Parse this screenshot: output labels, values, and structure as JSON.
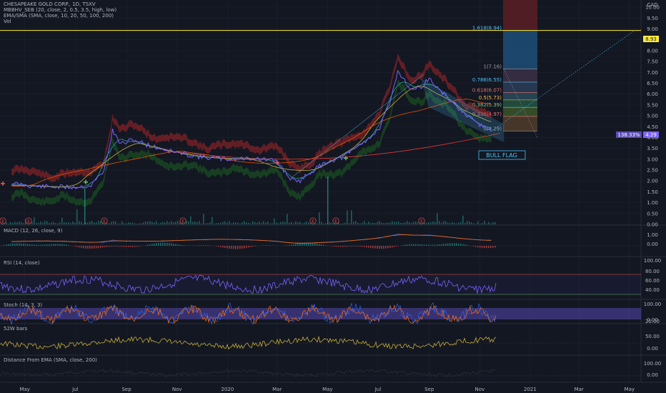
{
  "header": {
    "line1": "CHESAPEAKE GOLD CORP., 1D, TSXV",
    "line2": "MBBHV_SEB (20, close, 2, 0.5, 3.5, high, low)",
    "line3": "EMA/SMA (SMA, close, 10, 20, 50, 100, 200)",
    "line4": "Vol"
  },
  "colors": {
    "background": "#131722",
    "price": "#7b61ff",
    "band_red": "#c62828",
    "band_green": "#1b5e20",
    "ma_yellow": "#c9b03a",
    "ma_orange": "#e65100",
    "ma_red": "#e53935",
    "ma_teal": "#26a69a",
    "fib_label": "#4fc3f7",
    "target_line": "#ffeb3b",
    "flag": "#4fc3f7"
  },
  "price_axis": {
    "currency": "CAD",
    "ticks": [
      "10.00",
      "9.50",
      "9.00",
      "8.50",
      "8.00",
      "7.50",
      "7.00",
      "6.50",
      "6.00",
      "5.50",
      "5.00",
      "4.50",
      "4.00",
      "3.50",
      "3.00",
      "2.50",
      "2.00",
      "1.50",
      "1.00",
      "0.50",
      "0.00"
    ],
    "target_badge": "8.93",
    "last_price_badge": "4.29",
    "change_badge": "138.33%"
  },
  "time_axis": [
    "May",
    "Jul",
    "Sep",
    "Nov",
    "2020",
    "Mar",
    "May",
    "Jul",
    "Sep",
    "Nov",
    "2021",
    "Mar",
    "May"
  ],
  "fib_levels": [
    {
      "label": "1.618(8.94)",
      "value": 8.94
    },
    {
      "label": "1(7.16)",
      "value": 7.16
    },
    {
      "label": "0.786(6.55)",
      "value": 6.55
    },
    {
      "label": "0.618(6.07)",
      "value": 6.07
    },
    {
      "label": "0.5(5.73)",
      "value": 5.73
    },
    {
      "label": "0.382(5.39)",
      "value": 5.39
    },
    {
      "label": "0.236(4.97)",
      "value": 4.97
    },
    {
      "label": "0(4.29)",
      "value": 4.29
    }
  ],
  "annotation": "BULL FLAG",
  "earnings_marker": "E",
  "panes": {
    "macd": {
      "title": "MACD (12, 26, close, 9)",
      "ticks": [
        "1.00",
        "0.00"
      ]
    },
    "rsi": {
      "title": "RSI (14, close)",
      "ticks": [
        "100.00",
        "80.00",
        "60.00",
        "40.00"
      ]
    },
    "stoch": {
      "title": "Stoch (14, 3, 3)",
      "ticks": [
        "100.00",
        "0.00",
        "20.00"
      ]
    },
    "w52": {
      "title": "52W bars",
      "ticks": [
        "50.00",
        "0.00"
      ]
    },
    "dist": {
      "title": "Distance From EMA (SMA, close, 200)",
      "ticks": [
        "100.00",
        "0.00"
      ]
    }
  },
  "chart_data": {
    "type": "line",
    "x": [
      "2019-04-15",
      "2019-05-15",
      "2019-06-15",
      "2019-07-01",
      "2019-07-20",
      "2019-08-05",
      "2019-08-15",
      "2019-08-25",
      "2019-09-10",
      "2019-10-01",
      "2019-11-01",
      "2019-12-01",
      "2020-01-01",
      "2020-02-01",
      "2020-03-01",
      "2020-03-15",
      "2020-03-25",
      "2020-04-10",
      "2020-05-01",
      "2020-05-20",
      "2020-06-10",
      "2020-07-01",
      "2020-07-15",
      "2020-07-25",
      "2020-08-10",
      "2020-08-20",
      "2020-09-01",
      "2020-09-15",
      "2020-10-01",
      "2020-10-15",
      "2020-11-01",
      "2020-11-15"
    ],
    "series": [
      {
        "values": [
          1.88,
          1.75,
          1.72,
          1.72,
          1.78,
          2.5,
          4.3,
          3.7,
          3.9,
          3.6,
          3.3,
          3.1,
          3.0,
          3.05,
          2.9,
          2.2,
          1.9,
          2.4,
          2.9,
          3.1,
          3.7,
          4.3,
          5.5,
          7.1,
          6.2,
          6.3,
          6.7,
          6.1,
          5.6,
          5.0,
          4.6,
          4.29
        ]
      }
    ],
    "ylim": [
      0,
      10.3
    ]
  }
}
